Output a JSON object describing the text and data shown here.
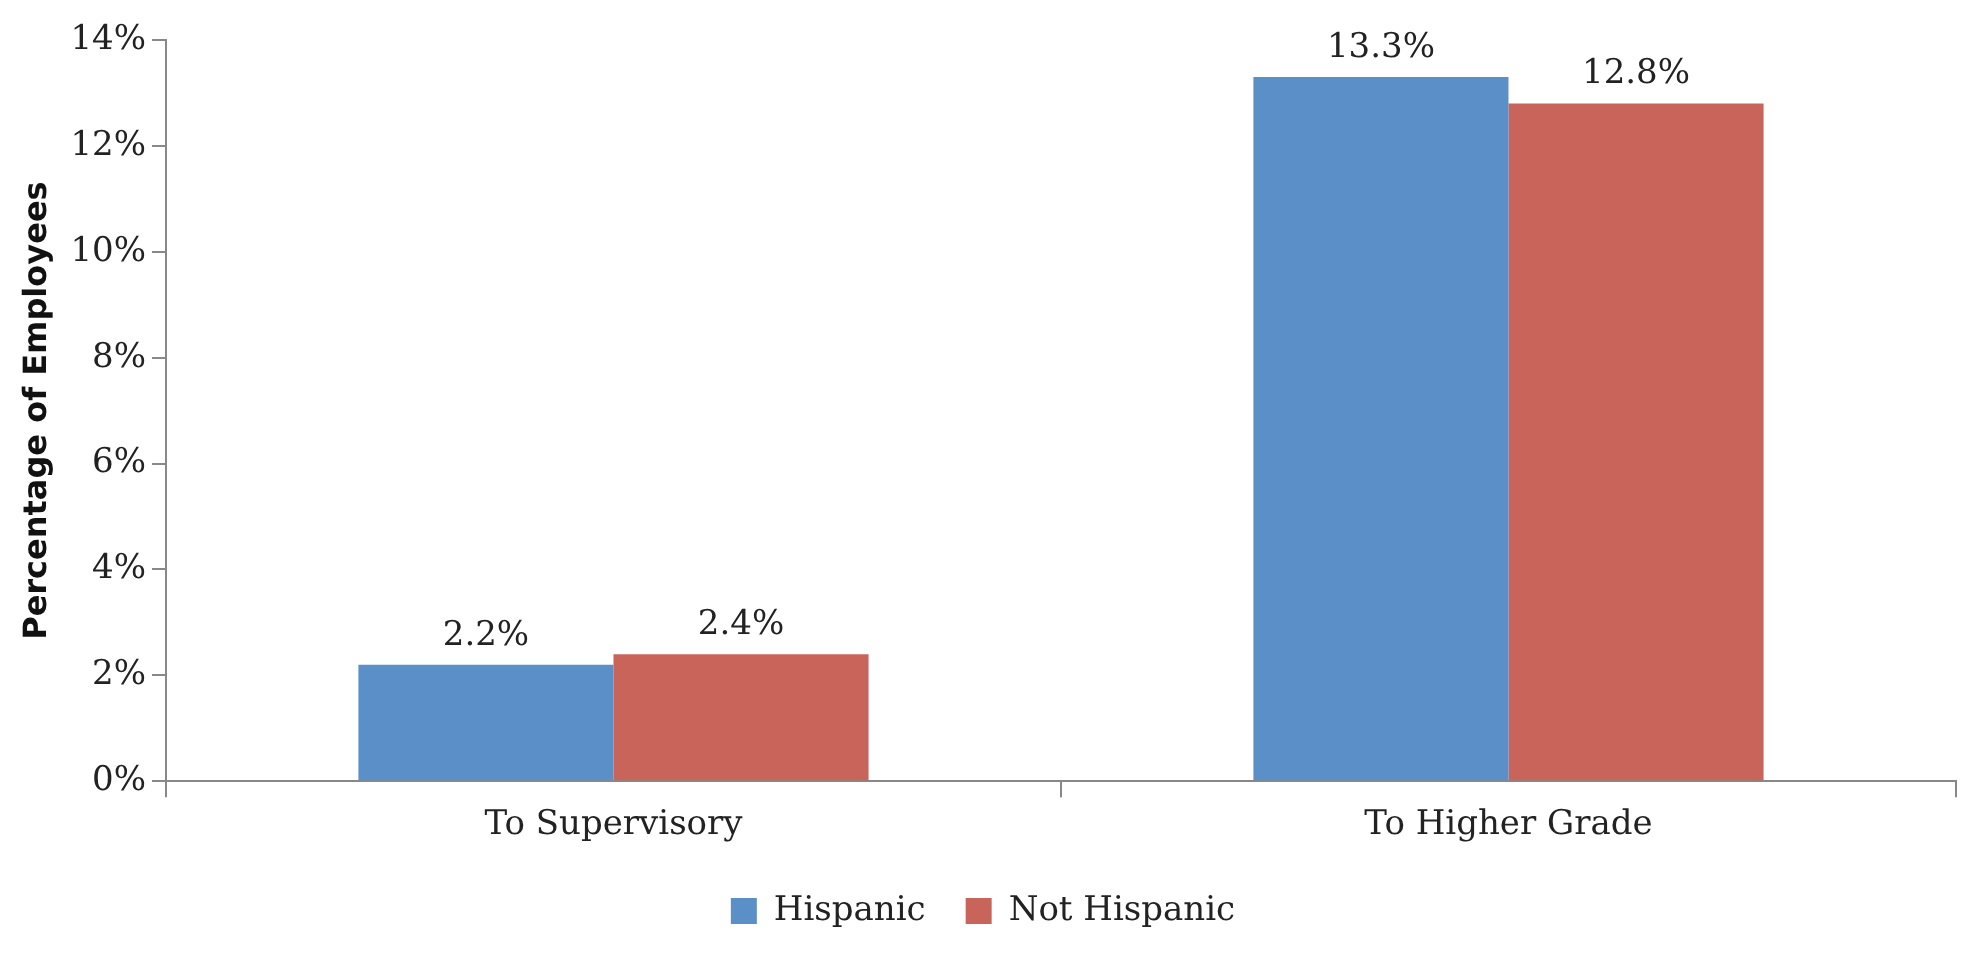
{
  "chart_data": {
    "type": "bar",
    "ylabel": "Percentage of Employees",
    "categories": [
      "To Supervisory",
      "To Higher Grade"
    ],
    "series": [
      {
        "name": "Hispanic",
        "color": "#5b8fc7",
        "values": [
          2.2,
          13.3
        ],
        "value_labels": [
          "2.2%",
          "13.3%"
        ]
      },
      {
        "name": "Not Hispanic",
        "color": "#c9645a",
        "values": [
          2.4,
          12.8
        ],
        "value_labels": [
          "2.4%",
          "12.8%"
        ]
      }
    ],
    "ylim": [
      0,
      14
    ],
    "yticks": [
      {
        "value": 0,
        "label": "0%"
      },
      {
        "value": 2,
        "label": "2%"
      },
      {
        "value": 4,
        "label": "4%"
      },
      {
        "value": 6,
        "label": "6%"
      },
      {
        "value": 8,
        "label": "8%"
      },
      {
        "value": 10,
        "label": "10%"
      },
      {
        "value": 12,
        "label": "12%"
      },
      {
        "value": 14,
        "label": "14%"
      }
    ],
    "grid": false,
    "legend": "bottom"
  }
}
